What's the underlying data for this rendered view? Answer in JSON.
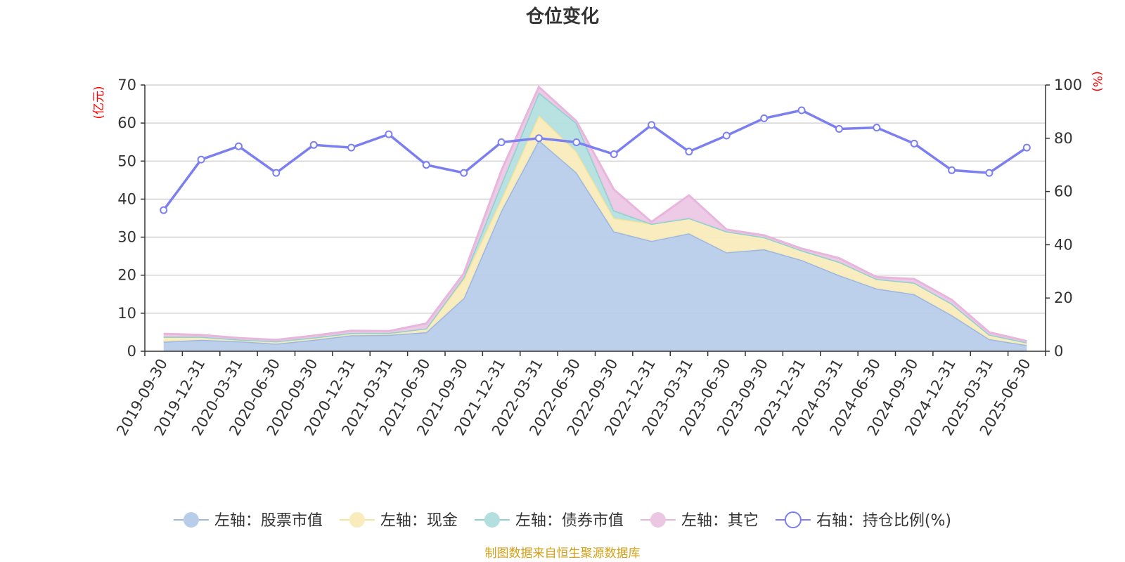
{
  "chart_data": {
    "type": "area",
    "title": "仓位变化",
    "left_axis_unit": "(亿元)",
    "right_axis_unit": "(%)",
    "source": "制图数据来自恒生聚源数据库",
    "categories": [
      "2019-09-30",
      "2019-12-31",
      "2020-03-31",
      "2020-06-30",
      "2020-09-30",
      "2020-12-31",
      "2021-03-31",
      "2021-06-30",
      "2021-09-30",
      "2021-12-31",
      "2022-03-31",
      "2022-06-30",
      "2022-09-30",
      "2022-12-31",
      "2023-03-31",
      "2023-06-30",
      "2023-09-30",
      "2023-12-31",
      "2024-03-31",
      "2024-06-30",
      "2024-09-30",
      "2024-12-31",
      "2025-03-31",
      "2025-06-30"
    ],
    "ylim_left": [
      0,
      70
    ],
    "yticks_left": [
      0,
      10,
      20,
      30,
      40,
      50,
      60,
      70
    ],
    "ylim_right": [
      0,
      100
    ],
    "yticks_right": [
      0,
      20,
      40,
      60,
      80,
      100
    ],
    "grid": true,
    "legend_position": "bottom",
    "series": [
      {
        "name": "左轴：股票市值",
        "axis": "left",
        "stack": true,
        "color": "#9db7e0",
        "fill": "#b8cdea",
        "values": [
          2.5,
          3.0,
          2.6,
          2.0,
          3.0,
          4.2,
          4.3,
          5.0,
          14.0,
          37.0,
          55.5,
          47.0,
          31.5,
          29.0,
          31.0,
          26.0,
          26.8,
          24.0,
          20.0,
          16.5,
          15.0,
          9.5,
          3.2,
          1.6
        ]
      },
      {
        "name": "左轴：现金",
        "axis": "left",
        "stack": true,
        "color": "#f7e39c",
        "fill": "#f9ecbc",
        "values": [
          1.3,
          0.8,
          0.5,
          0.6,
          0.6,
          0.6,
          0.5,
          1.0,
          5.0,
          3.0,
          6.5,
          5.5,
          3.5,
          4.5,
          4.0,
          5.5,
          3.2,
          2.5,
          3.5,
          2.5,
          3.0,
          3.0,
          1.2,
          0.7
        ]
      },
      {
        "name": "左轴：债券市值",
        "axis": "left",
        "stack": true,
        "color": "#8fd1cf",
        "fill": "#b3e0df",
        "values": [
          0,
          0,
          0,
          0,
          0,
          0,
          0,
          0,
          0.5,
          4.0,
          6.0,
          7.5,
          2.0,
          0,
          0,
          0,
          0,
          0,
          0,
          0,
          0,
          0,
          0,
          0
        ]
      },
      {
        "name": "左轴：其它",
        "axis": "left",
        "stack": true,
        "color": "#e8b6dc",
        "fill": "#ecc7e4",
        "values": [
          0.8,
          0.5,
          0.4,
          0.4,
          0.5,
          0.6,
          0.5,
          1.3,
          1.0,
          3.5,
          1.5,
          0.5,
          5.5,
          0.5,
          6.0,
          0.5,
          0.5,
          0.5,
          1.0,
          0.5,
          1.0,
          1.0,
          0.6,
          0.4
        ]
      },
      {
        "name": "右轴：持仓比例(%)",
        "axis": "right",
        "type": "line",
        "color": "#7b7ff0",
        "values": [
          53.0,
          72.0,
          77.0,
          67.0,
          77.5,
          76.5,
          81.5,
          70.0,
          67.0,
          78.5,
          80.0,
          78.5,
          74.0,
          85.0,
          75.0,
          81.0,
          87.5,
          90.5,
          83.5,
          84.0,
          78.0,
          68.0,
          67.0,
          76.5
        ]
      }
    ]
  }
}
